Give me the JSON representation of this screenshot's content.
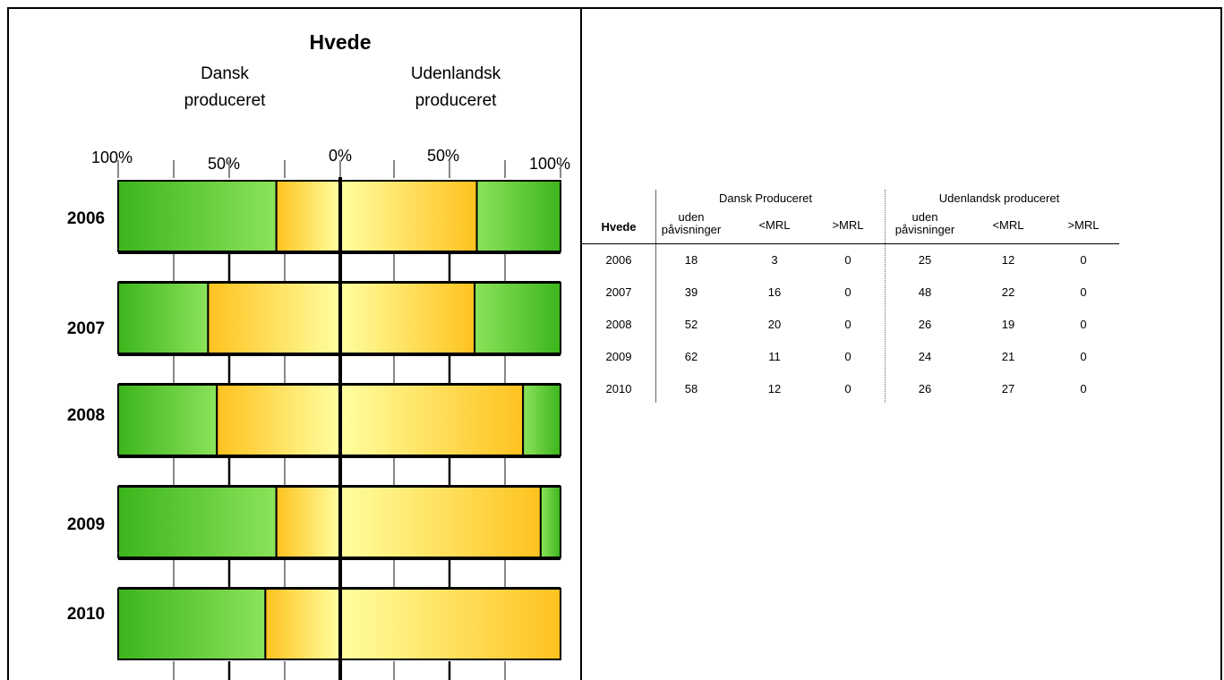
{
  "chart_data": {
    "type": "bar",
    "title": "Hvede",
    "left_caption": [
      "Dansk",
      "produceret"
    ],
    "right_caption": [
      "Udenlandsk",
      "produceret"
    ],
    "axis_ticks": [
      "100%",
      "50%",
      "0%",
      "50%",
      "100%"
    ],
    "categories": [
      "2006",
      "2007",
      "2008",
      "2009",
      "2010"
    ],
    "series": [
      {
        "name": "",
        "side": "Dansk",
        "values": [
          29,
          60,
          56,
          29,
          34
        ]
      },
      {
        "name": "",
        "side": "Udenlandsk",
        "values": [
          62,
          61,
          83,
          91,
          100
        ]
      }
    ],
    "colors": {
      "green_dark": "#3cb51c",
      "green_light": "#8be35a",
      "yellow_light": "#ffffa0",
      "yellow_dark": "#ffc21f"
    }
  },
  "table": {
    "corner_label": "Hvede",
    "group_dansk": "Dansk Produceret",
    "group_udenlandsk": "Udenlandsk produceret",
    "col_headers": [
      [
        "uden",
        "påvisninger"
      ],
      [
        "<MRL"
      ],
      [
        ">MRL"
      ],
      [
        "uden",
        "påvisninger"
      ],
      [
        "<MRL"
      ],
      [
        ">MRL"
      ]
    ],
    "rows": [
      [
        "2006",
        "18",
        "3",
        "0",
        "25",
        "12",
        "0"
      ],
      [
        "2007",
        "39",
        "16",
        "0",
        "48",
        "22",
        "0"
      ],
      [
        "2008",
        "52",
        "20",
        "0",
        "26",
        "19",
        "0"
      ],
      [
        "2009",
        "62",
        "11",
        "0",
        "24",
        "21",
        "0"
      ],
      [
        "2010",
        "58",
        "12",
        "0",
        "26",
        "27",
        "0"
      ]
    ]
  }
}
